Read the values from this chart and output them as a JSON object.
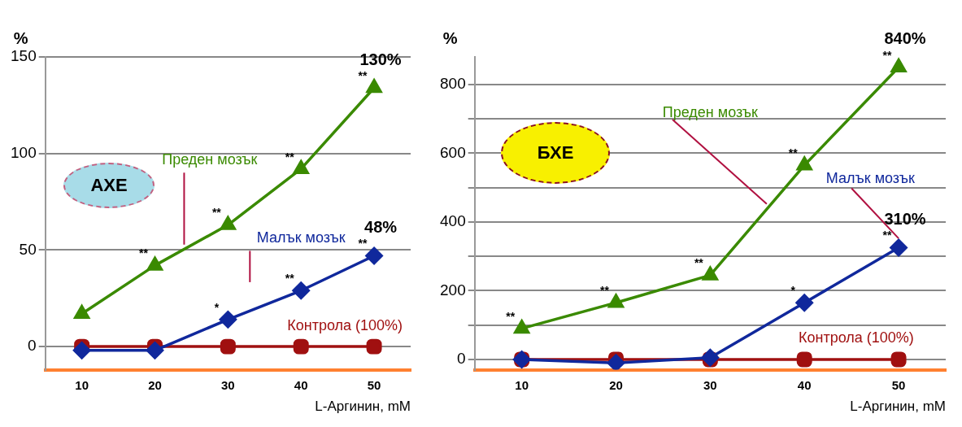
{
  "chart_data": [
    {
      "type": "line",
      "ylabel": "%",
      "xlabel": "L-Аргинин, mM",
      "categories": [
        "10",
        "20",
        "30",
        "40",
        "50"
      ],
      "ylim": [
        -12,
        150
      ],
      "yticks": [
        0,
        50,
        100,
        150
      ],
      "grid": "y",
      "legend": false,
      "line_style": "solid",
      "series": [
        {
          "name": "Преден мозък",
          "color": "#3a8a00",
          "marker": "triangle",
          "values": [
            17,
            42,
            63,
            92,
            134
          ]
        },
        {
          "name": "Малък мозък",
          "color": "#10289c",
          "marker": "diamond",
          "values": [
            -2,
            -2,
            14,
            29,
            47
          ]
        },
        {
          "name": "Контрола (100%)",
          "color": "#a01010",
          "marker": "square",
          "values": [
            0,
            0,
            0,
            0,
            0
          ]
        }
      ],
      "annotations": [
        "АХЕ",
        {
          "text": "130%",
          "x": "50",
          "y": 134
        },
        {
          "text": "48%",
          "x": "50",
          "y": 47
        },
        {
          "text": "**",
          "x": "20",
          "y": 42
        },
        {
          "text": "**",
          "x": "30",
          "y": 63
        },
        {
          "text": "**",
          "x": "40",
          "y": 92
        },
        {
          "text": "**",
          "x": "50",
          "y": 134
        },
        {
          "text": "*",
          "x": "30",
          "y": 14
        },
        {
          "text": "**",
          "x": "40",
          "y": 29
        },
        {
          "text": "**",
          "x": "50",
          "y": 47
        }
      ]
    },
    {
      "type": "line",
      "ylabel": "%",
      "xlabel": "L-Аргинин, mM",
      "categories": [
        "10",
        "20",
        "30",
        "40",
        "50"
      ],
      "ylim": [
        -30,
        880
      ],
      "yticks": [
        0,
        {
          "value": 100,
          "label": null
        },
        200,
        {
          "value": 300,
          "label": null
        },
        400,
        {
          "value": 500,
          "label": null
        },
        600,
        {
          "value": 700,
          "label": null
        },
        800
      ],
      "grid": "y",
      "legend": false,
      "line_style": "solid",
      "series": [
        {
          "name": "Преден мозък",
          "color": "#3a8a00",
          "marker": "triangle",
          "values": [
            90,
            165,
            245,
            565,
            850
          ]
        },
        {
          "name": "Малък мозък",
          "color": "#10289c",
          "marker": "diamond",
          "values": [
            0,
            -10,
            5,
            165,
            325
          ]
        },
        {
          "name": "Контрола (100%)",
          "color": "#a01010",
          "marker": "square",
          "values": [
            0,
            0,
            0,
            0,
            0
          ]
        }
      ],
      "annotations": [
        "БХЕ",
        {
          "text": "840%",
          "x": "50",
          "y": 850
        },
        {
          "text": "310%",
          "x": "50",
          "y": 325
        },
        {
          "text": "**",
          "x": "10",
          "y": 90
        },
        {
          "text": "**",
          "x": "20",
          "y": 165
        },
        {
          "text": "**",
          "x": "30",
          "y": 245
        },
        {
          "text": "**",
          "x": "40",
          "y": 565
        },
        {
          "text": "**",
          "x": "50",
          "y": 850
        },
        {
          "text": "*",
          "x": "40",
          "y": 165
        },
        {
          "text": "**",
          "x": "50",
          "y": 325
        }
      ]
    }
  ]
}
